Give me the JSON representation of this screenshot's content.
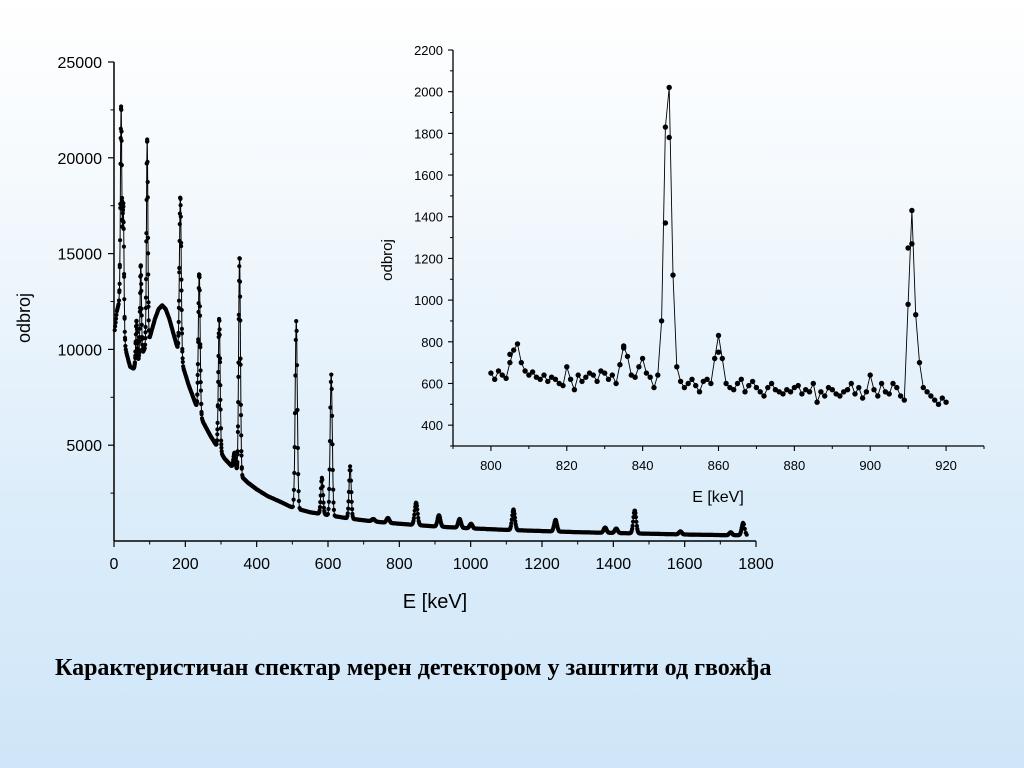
{
  "caption": "Карактеристичан спектар мерен детектором у заштити од гвожђа",
  "chart_data": [
    {
      "type": "line",
      "xlabel": "E [keV]",
      "ylabel": "odbroj",
      "xlim": [
        0,
        1800
      ],
      "ylim": [
        0,
        25000
      ],
      "x_ticks": [
        0,
        200,
        400,
        600,
        800,
        1000,
        1200,
        1400,
        1600,
        1800
      ],
      "y_ticks": [
        5000,
        10000,
        15000,
        20000,
        25000
      ],
      "markers": "filled-circle",
      "continuum": [
        [
          2,
          11000
        ],
        [
          8,
          12000
        ],
        [
          15,
          12500
        ],
        [
          22,
          11000
        ],
        [
          28,
          10500
        ],
        [
          35,
          9800
        ],
        [
          45,
          9100
        ],
        [
          55,
          9000
        ],
        [
          65,
          9300
        ],
        [
          80,
          9800
        ],
        [
          100,
          10600
        ],
        [
          115,
          11600
        ],
        [
          125,
          12100
        ],
        [
          135,
          12300
        ],
        [
          145,
          12100
        ],
        [
          155,
          11600
        ],
        [
          170,
          10600
        ],
        [
          190,
          9300
        ],
        [
          210,
          8100
        ],
        [
          230,
          7100
        ],
        [
          250,
          6200
        ],
        [
          270,
          5500
        ],
        [
          290,
          4900
        ],
        [
          310,
          4300
        ],
        [
          330,
          3900
        ],
        [
          350,
          3500
        ],
        [
          375,
          3050
        ],
        [
          400,
          2700
        ],
        [
          430,
          2350
        ],
        [
          460,
          2100
        ],
        [
          500,
          1750
        ],
        [
          550,
          1500
        ],
        [
          600,
          1350
        ],
        [
          650,
          1200
        ],
        [
          700,
          1080
        ],
        [
          750,
          980
        ],
        [
          800,
          900
        ],
        [
          900,
          760
        ],
        [
          1000,
          660
        ],
        [
          1100,
          580
        ],
        [
          1200,
          520
        ],
        [
          1300,
          460
        ],
        [
          1400,
          420
        ],
        [
          1500,
          380
        ],
        [
          1600,
          340
        ],
        [
          1700,
          310
        ],
        [
          1760,
          300
        ]
      ],
      "peaks": [
        {
          "x": 20,
          "y": 22600,
          "w": 2
        },
        {
          "x": 26,
          "y": 17500,
          "w": 2
        },
        {
          "x": 63,
          "y": 11500,
          "w": 2
        },
        {
          "x": 75,
          "y": 14400,
          "w": 2
        },
        {
          "x": 93,
          "y": 21000,
          "w": 2
        },
        {
          "x": 186,
          "y": 18000,
          "w": 2.5
        },
        {
          "x": 239,
          "y": 14000,
          "w": 2.5
        },
        {
          "x": 295,
          "y": 11600,
          "w": 2.5
        },
        {
          "x": 338,
          "y": 4600,
          "w": 3
        },
        {
          "x": 352,
          "y": 14900,
          "w": 2.5
        },
        {
          "x": 511,
          "y": 11500,
          "w": 3
        },
        {
          "x": 583,
          "y": 3300,
          "w": 3
        },
        {
          "x": 609,
          "y": 8700,
          "w": 3
        },
        {
          "x": 662,
          "y": 3900,
          "w": 3
        },
        {
          "x": 727,
          "y": 1150,
          "w": 4
        },
        {
          "x": 768,
          "y": 1200,
          "w": 4
        },
        {
          "x": 847,
          "y": 2000,
          "w": 4
        },
        {
          "x": 911,
          "y": 1350,
          "w": 4
        },
        {
          "x": 969,
          "y": 1150,
          "w": 4
        },
        {
          "x": 1001,
          "y": 900,
          "w": 4
        },
        {
          "x": 1120,
          "y": 1650,
          "w": 4
        },
        {
          "x": 1238,
          "y": 1100,
          "w": 4
        },
        {
          "x": 1377,
          "y": 700,
          "w": 4
        },
        {
          "x": 1408,
          "y": 650,
          "w": 4
        },
        {
          "x": 1460,
          "y": 1600,
          "w": 4
        },
        {
          "x": 1588,
          "y": 500,
          "w": 4
        },
        {
          "x": 1729,
          "y": 450,
          "w": 4
        },
        {
          "x": 1764,
          "y": 950,
          "w": 4
        }
      ]
    },
    {
      "type": "line",
      "xlabel": "E [keV]",
      "ylabel": "odbroj",
      "xlim": [
        790,
        930
      ],
      "ylim": [
        300,
        2200
      ],
      "x_ticks": [
        800,
        820,
        840,
        860,
        880,
        900,
        920
      ],
      "y_ticks": [
        400,
        600,
        800,
        1000,
        1200,
        1400,
        1600,
        1800,
        2000,
        2200
      ],
      "markers": "filled-circle",
      "x": [
        800,
        801,
        802,
        803,
        804,
        805,
        806,
        807,
        808,
        809,
        810,
        811,
        812,
        813,
        814,
        815,
        816,
        817,
        818,
        819,
        820,
        821,
        822,
        823,
        824,
        825,
        826,
        827,
        828,
        829,
        830,
        831,
        832,
        833,
        834,
        835,
        836,
        837,
        838,
        839,
        840,
        841,
        842,
        843,
        844,
        845,
        846,
        847,
        848,
        849,
        850,
        851,
        852,
        853,
        854,
        855,
        856,
        857,
        858,
        859,
        860,
        861,
        862,
        863,
        864,
        865,
        866,
        867,
        868,
        869,
        870,
        871,
        872,
        873,
        874,
        875,
        876,
        877,
        878,
        879,
        880,
        881,
        882,
        883,
        884,
        885,
        886,
        887,
        888,
        889,
        890,
        891,
        892,
        893,
        894,
        895,
        896,
        897,
        898,
        899,
        900,
        901,
        902,
        903,
        904,
        905,
        906,
        907,
        908,
        909,
        910,
        911,
        912,
        913,
        914,
        915,
        916,
        917,
        918,
        919,
        920
      ],
      "y": [
        650,
        620,
        660,
        640,
        625,
        700,
        760,
        790,
        700,
        660,
        640,
        655,
        630,
        620,
        640,
        610,
        630,
        620,
        600,
        590,
        680,
        620,
        570,
        640,
        610,
        630,
        650,
        640,
        610,
        660,
        650,
        620,
        640,
        600,
        690,
        780,
        730,
        640,
        630,
        680,
        720,
        650,
        630,
        580,
        640,
        900,
        1830,
        2020,
        1120,
        680,
        610,
        580,
        600,
        620,
        590,
        560,
        610,
        620,
        600,
        720,
        830,
        720,
        600,
        580,
        570,
        600,
        620,
        560,
        590,
        610,
        580,
        560,
        540,
        580,
        600,
        570,
        560,
        550,
        570,
        560,
        580,
        590,
        550,
        570,
        560,
        600,
        510,
        560,
        540,
        580,
        570,
        550,
        540,
        560,
        570,
        600,
        550,
        580,
        530,
        560,
        640,
        570,
        540,
        600,
        560,
        550,
        600,
        580,
        540,
        520,
        980,
        1430,
        930,
        700,
        580,
        560,
        540,
        520,
        500,
        530,
        510
      ],
      "multi": [
        {
          "x": 846,
          "y": 1370
        },
        {
          "x": 847,
          "y": 1780
        },
        {
          "x": 910,
          "y": 1250
        },
        {
          "x": 911,
          "y": 1270
        },
        {
          "x": 805,
          "y": 740
        },
        {
          "x": 860,
          "y": 750
        },
        {
          "x": 835,
          "y": 770
        }
      ]
    }
  ]
}
